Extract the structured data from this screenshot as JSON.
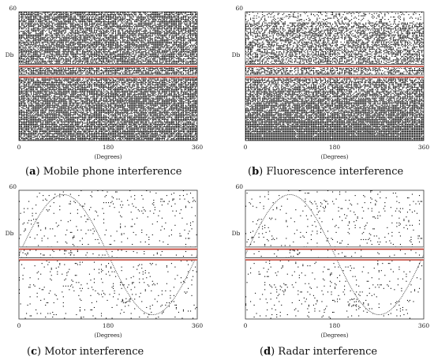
{
  "chart_data": [
    {
      "type": "scatter",
      "caption_letter": "a",
      "caption_text": "Mobile phone interference",
      "ylabel": "Db",
      "xlabel": "(Degrees)",
      "xlim": [
        0,
        360
      ],
      "ylim": [
        0,
        60
      ],
      "xticks": [
        "0",
        "180",
        "360"
      ],
      "yticks": [
        "60"
      ],
      "noise_fraction": 0.75,
      "lower_noise_boost": 0.1,
      "sine": {
        "amplitude": 28,
        "offset": 30,
        "period_deg": 360
      },
      "bands": [
        {
          "name": "upper-band",
          "y": 35
        },
        {
          "name": "lower-band",
          "y": 30
        }
      ]
    },
    {
      "type": "scatter",
      "caption_letter": "b",
      "caption_text": "Fluorescence interference",
      "ylabel": "Db",
      "xlabel": "(Degrees)",
      "xlim": [
        0,
        360
      ],
      "ylim": [
        0,
        60
      ],
      "xticks": [
        "0",
        "180",
        "360"
      ],
      "yticks": [
        "60"
      ],
      "noise_fraction": 0.55,
      "lower_noise_boost": 0.45,
      "sine": {
        "amplitude": 28,
        "offset": 30,
        "period_deg": 360
      },
      "bands": [
        {
          "name": "upper-band",
          "y": 35
        },
        {
          "name": "lower-band",
          "y": 30
        }
      ]
    },
    {
      "type": "scatter",
      "caption_letter": "c",
      "caption_text": "Motor interference",
      "ylabel": "Db",
      "xlabel": "(Degrees)",
      "xlim": [
        0,
        360
      ],
      "ylim": [
        0,
        60
      ],
      "xticks": [
        "0",
        "180",
        "360"
      ],
      "yticks": [
        "60"
      ],
      "noise_fraction": 0.04,
      "lower_noise_boost": 0,
      "sine": {
        "amplitude": 28,
        "offset": 30,
        "period_deg": 360
      },
      "bands": [
        {
          "name": "upper-band",
          "y": 33
        },
        {
          "name": "lower-band",
          "y": 28
        }
      ]
    },
    {
      "type": "scatter",
      "caption_letter": "d",
      "caption_text": "Radar interference",
      "ylabel": "Db",
      "xlabel": "(Degrees)",
      "xlim": [
        0,
        360
      ],
      "ylim": [
        0,
        60
      ],
      "xticks": [
        "0",
        "180",
        "360"
      ],
      "yticks": [
        "60"
      ],
      "noise_fraction": 0.04,
      "lower_noise_boost": 0,
      "sine": {
        "amplitude": 28,
        "offset": 30,
        "period_deg": 360
      },
      "bands": [
        {
          "name": "upper-band",
          "y": 33
        },
        {
          "name": "lower-band",
          "y": 28
        }
      ]
    }
  ]
}
